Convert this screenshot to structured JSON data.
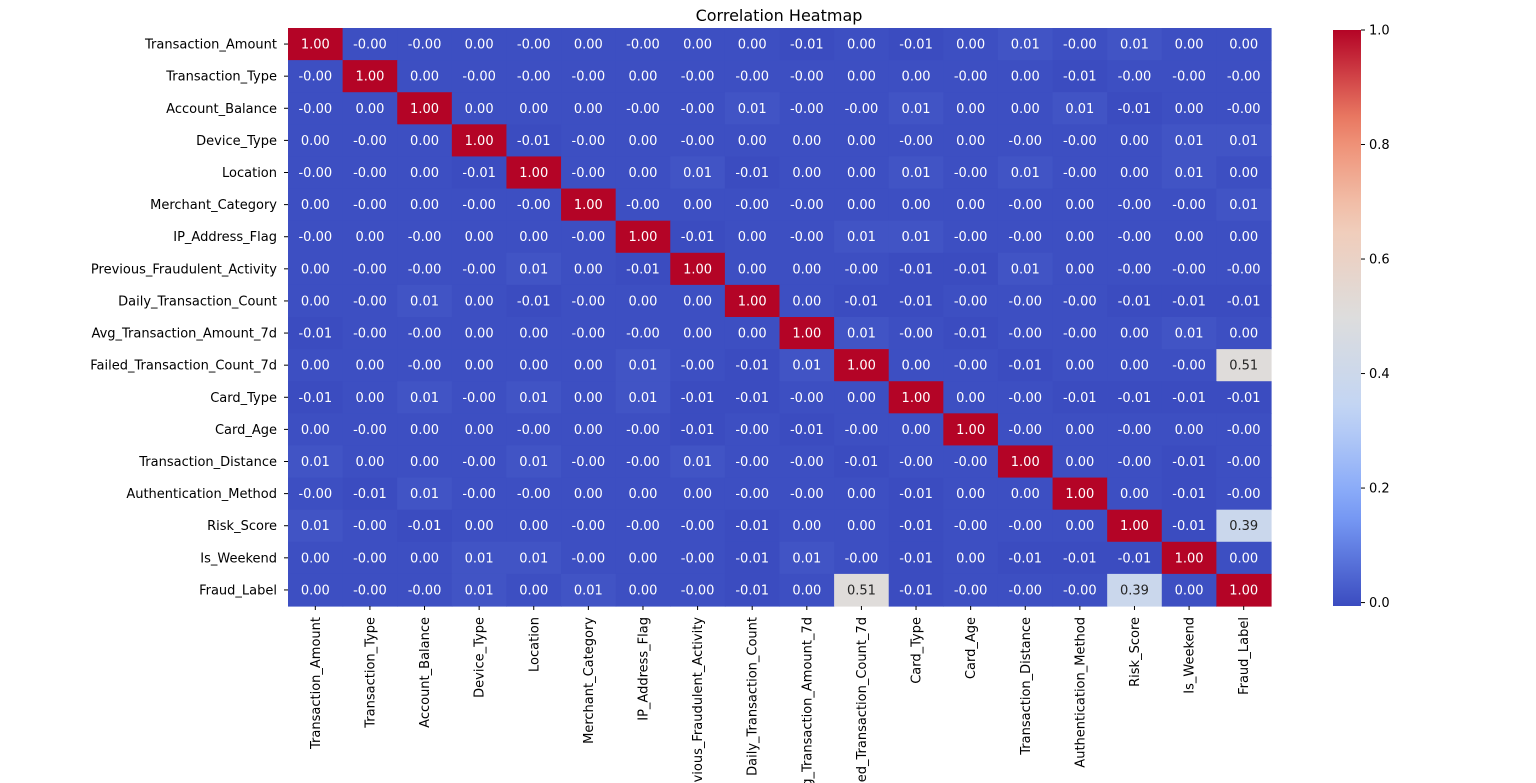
{
  "chart_data": {
    "type": "heatmap",
    "title": "Correlation Heatmap",
    "colormap": "coolwarm",
    "colormap_stops": [
      "#3b4cc0",
      "#7b9ff9",
      "#c0d4f5",
      "#dddddd",
      "#f2cbb7",
      "#ee8468",
      "#b40426"
    ],
    "labels": [
      "Transaction_Amount",
      "Transaction_Type",
      "Account_Balance",
      "Device_Type",
      "Location",
      "Merchant_Category",
      "IP_Address_Flag",
      "Previous_Fraudulent_Activity",
      "Daily_Transaction_Count",
      "Avg_Transaction_Amount_7d",
      "Failed_Transaction_Count_7d",
      "Card_Type",
      "Card_Age",
      "Transaction_Distance",
      "Authentication_Method",
      "Risk_Score",
      "Is_Weekend",
      "Fraud_Label"
    ],
    "annotations": [
      [
        "1.00",
        "-0.00",
        "-0.00",
        "0.00",
        "-0.00",
        "0.00",
        "-0.00",
        "0.00",
        "0.00",
        "-0.01",
        "0.00",
        "-0.01",
        "0.00",
        "0.01",
        "-0.00",
        "0.01",
        "0.00",
        "0.00"
      ],
      [
        "-0.00",
        "1.00",
        "0.00",
        "-0.00",
        "-0.00",
        "-0.00",
        "0.00",
        "-0.00",
        "-0.00",
        "-0.00",
        "0.00",
        "0.00",
        "-0.00",
        "0.00",
        "-0.01",
        "-0.00",
        "-0.00",
        "-0.00"
      ],
      [
        "-0.00",
        "0.00",
        "1.00",
        "0.00",
        "0.00",
        "0.00",
        "-0.00",
        "-0.00",
        "0.01",
        "-0.00",
        "-0.00",
        "0.01",
        "0.00",
        "0.00",
        "0.01",
        "-0.01",
        "0.00",
        "-0.00"
      ],
      [
        "0.00",
        "-0.00",
        "0.00",
        "1.00",
        "-0.01",
        "-0.00",
        "0.00",
        "-0.00",
        "0.00",
        "0.00",
        "0.00",
        "-0.00",
        "0.00",
        "-0.00",
        "-0.00",
        "0.00",
        "0.01",
        "0.01"
      ],
      [
        "-0.00",
        "-0.00",
        "0.00",
        "-0.01",
        "1.00",
        "-0.00",
        "0.00",
        "0.01",
        "-0.01",
        "0.00",
        "0.00",
        "0.01",
        "-0.00",
        "0.01",
        "-0.00",
        "0.00",
        "0.01",
        "0.00"
      ],
      [
        "0.00",
        "-0.00",
        "0.00",
        "-0.00",
        "-0.00",
        "1.00",
        "-0.00",
        "0.00",
        "-0.00",
        "-0.00",
        "0.00",
        "0.00",
        "0.00",
        "-0.00",
        "0.00",
        "-0.00",
        "-0.00",
        "0.01"
      ],
      [
        "-0.00",
        "0.00",
        "-0.00",
        "0.00",
        "0.00",
        "-0.00",
        "1.00",
        "-0.01",
        "0.00",
        "-0.00",
        "0.01",
        "0.01",
        "-0.00",
        "-0.00",
        "0.00",
        "-0.00",
        "0.00",
        "0.00"
      ],
      [
        "0.00",
        "-0.00",
        "-0.00",
        "-0.00",
        "0.01",
        "0.00",
        "-0.01",
        "1.00",
        "0.00",
        "0.00",
        "-0.00",
        "-0.01",
        "-0.01",
        "0.01",
        "0.00",
        "-0.00",
        "-0.00",
        "-0.00"
      ],
      [
        "0.00",
        "-0.00",
        "0.01",
        "0.00",
        "-0.01",
        "-0.00",
        "0.00",
        "0.00",
        "1.00",
        "0.00",
        "-0.01",
        "-0.01",
        "-0.00",
        "-0.00",
        "-0.00",
        "-0.01",
        "-0.01",
        "-0.01"
      ],
      [
        "-0.01",
        "-0.00",
        "-0.00",
        "0.00",
        "0.00",
        "-0.00",
        "-0.00",
        "0.00",
        "0.00",
        "1.00",
        "0.01",
        "-0.00",
        "-0.01",
        "-0.00",
        "-0.00",
        "0.00",
        "0.01",
        "0.00"
      ],
      [
        "0.00",
        "0.00",
        "-0.00",
        "0.00",
        "0.00",
        "0.00",
        "0.01",
        "-0.00",
        "-0.01",
        "0.01",
        "1.00",
        "0.00",
        "-0.00",
        "-0.01",
        "0.00",
        "0.00",
        "-0.00",
        "0.51"
      ],
      [
        "-0.01",
        "0.00",
        "0.01",
        "-0.00",
        "0.01",
        "0.00",
        "0.01",
        "-0.01",
        "-0.01",
        "-0.00",
        "0.00",
        "1.00",
        "0.00",
        "-0.00",
        "-0.01",
        "-0.01",
        "-0.01",
        "-0.01"
      ],
      [
        "0.00",
        "-0.00",
        "0.00",
        "0.00",
        "-0.00",
        "0.00",
        "-0.00",
        "-0.01",
        "-0.00",
        "-0.01",
        "-0.00",
        "0.00",
        "1.00",
        "-0.00",
        "0.00",
        "-0.00",
        "0.00",
        "-0.00"
      ],
      [
        "0.01",
        "0.00",
        "0.00",
        "-0.00",
        "0.01",
        "-0.00",
        "-0.00",
        "0.01",
        "-0.00",
        "-0.00",
        "-0.01",
        "-0.00",
        "-0.00",
        "1.00",
        "0.00",
        "-0.00",
        "-0.01",
        "-0.00"
      ],
      [
        "-0.00",
        "-0.01",
        "0.01",
        "-0.00",
        "-0.00",
        "0.00",
        "0.00",
        "0.00",
        "-0.00",
        "-0.00",
        "0.00",
        "-0.01",
        "0.00",
        "0.00",
        "1.00",
        "0.00",
        "-0.01",
        "-0.00"
      ],
      [
        "0.01",
        "-0.00",
        "-0.01",
        "0.00",
        "0.00",
        "-0.00",
        "-0.00",
        "-0.00",
        "-0.01",
        "0.00",
        "0.00",
        "-0.01",
        "-0.00",
        "-0.00",
        "0.00",
        "1.00",
        "-0.01",
        "0.39"
      ],
      [
        "0.00",
        "-0.00",
        "0.00",
        "0.01",
        "0.01",
        "-0.00",
        "0.00",
        "-0.00",
        "-0.01",
        "0.01",
        "-0.00",
        "-0.01",
        "0.00",
        "-0.01",
        "-0.01",
        "-0.01",
        "1.00",
        "0.00"
      ],
      [
        "0.00",
        "-0.00",
        "-0.00",
        "0.01",
        "0.00",
        "0.01",
        "0.00",
        "-0.00",
        "-0.01",
        "0.00",
        "0.51",
        "-0.01",
        "-0.00",
        "-0.00",
        "-0.00",
        "0.39",
        "0.00",
        "1.00"
      ]
    ],
    "vmin": -0.006,
    "vmax": 1.0,
    "colorbar_ticks": [
      "0.0",
      "0.2",
      "0.4",
      "0.6",
      "0.8",
      "1.0"
    ]
  }
}
